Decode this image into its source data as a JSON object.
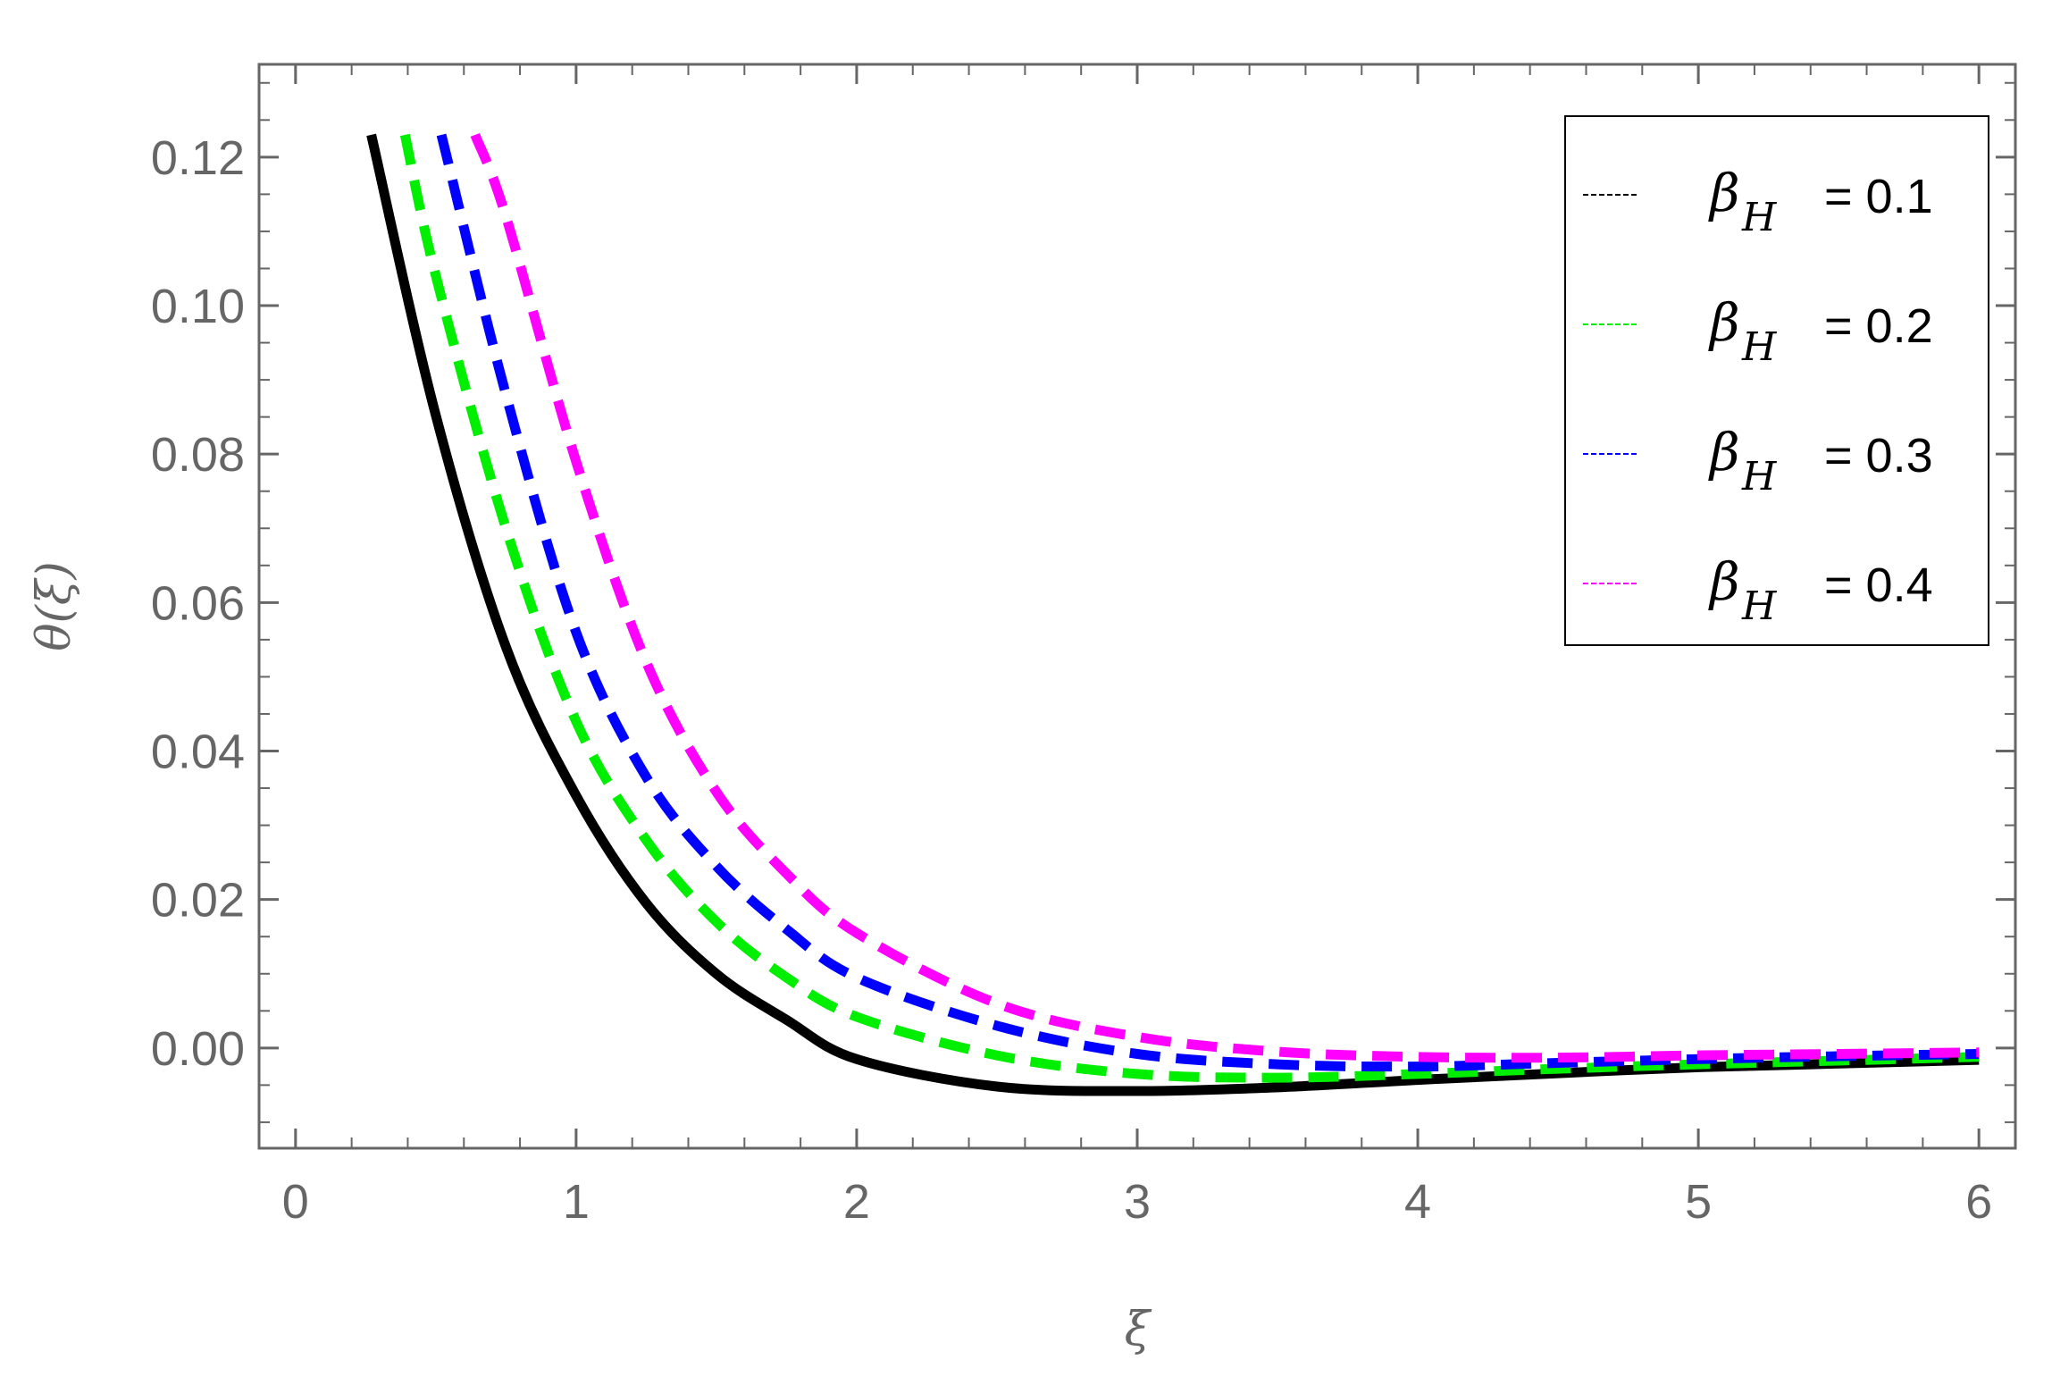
{
  "chart_data": {
    "type": "line",
    "title": "",
    "xlabel": "ξ",
    "ylabel": "θ(ξ)",
    "xlim": [
      -0.13,
      6.13
    ],
    "ylim": [
      -0.0135,
      0.1325
    ],
    "x_ticks": [
      0,
      1,
      2,
      3,
      4,
      5,
      6
    ],
    "y_ticks": [
      0.0,
      0.02,
      0.04,
      0.06,
      0.08,
      0.1,
      0.12
    ],
    "x_tick_labels": [
      "0",
      "1",
      "2",
      "3",
      "4",
      "5",
      "6"
    ],
    "y_tick_labels": [
      "0.00",
      "0.02",
      "0.04",
      "0.06",
      "0.08",
      "0.10",
      "0.12"
    ],
    "grid": false,
    "legend_position": "top-right",
    "x": [
      0.5,
      0.75,
      1.0,
      1.25,
      1.5,
      1.75,
      2.0,
      2.5,
      3.0,
      3.5,
      4.0,
      4.5,
      5.0,
      5.5,
      6.0
    ],
    "series": [
      {
        "legend_symbol": "β",
        "legend_subscript": "H",
        "legend_value": "= 0.1",
        "color": "#000000",
        "style": "solid",
        "start": [
          0.27,
          0.123
        ],
        "values": [
          0.0852,
          0.054,
          0.034,
          0.0195,
          0.01,
          0.0038,
          -0.0015,
          -0.0052,
          -0.0058,
          -0.0053,
          -0.0043,
          -0.0034,
          -0.0026,
          -0.0021,
          -0.0016
        ]
      },
      {
        "legend_symbol": "β",
        "legend_subscript": "H",
        "legend_value": "= 0.2",
        "color": "#00ee00",
        "style": "dashed",
        "start": [
          0.39,
          0.123
        ],
        "values": [
          0.104,
          0.07,
          0.044,
          0.028,
          0.017,
          0.0095,
          0.0042,
          -0.001,
          -0.0035,
          -0.004,
          -0.0035,
          -0.0028,
          -0.0022,
          -0.0017,
          -0.0012
        ]
      },
      {
        "legend_symbol": "β",
        "legend_subscript": "H",
        "legend_value": "= 0.3",
        "color": "#0000ff",
        "style": "dashed",
        "start": [
          0.52,
          0.123
        ],
        "values": [
          0.124,
          0.088,
          0.056,
          0.0365,
          0.0245,
          0.016,
          0.0095,
          0.003,
          -0.0008,
          -0.0022,
          -0.0025,
          -0.002,
          -0.0015,
          -0.0011,
          -0.0008
        ]
      },
      {
        "legend_symbol": "β",
        "legend_subscript": "H",
        "legend_value": "= 0.4",
        "color": "#ff00ff",
        "style": "dashed",
        "start": [
          0.64,
          0.123
        ],
        "values": [
          null,
          0.112,
          0.079,
          0.052,
          0.0345,
          0.0235,
          0.0155,
          0.006,
          0.0015,
          -0.0005,
          -0.0012,
          -0.0013,
          -0.001,
          -0.0008,
          -0.0006
        ]
      }
    ]
  }
}
